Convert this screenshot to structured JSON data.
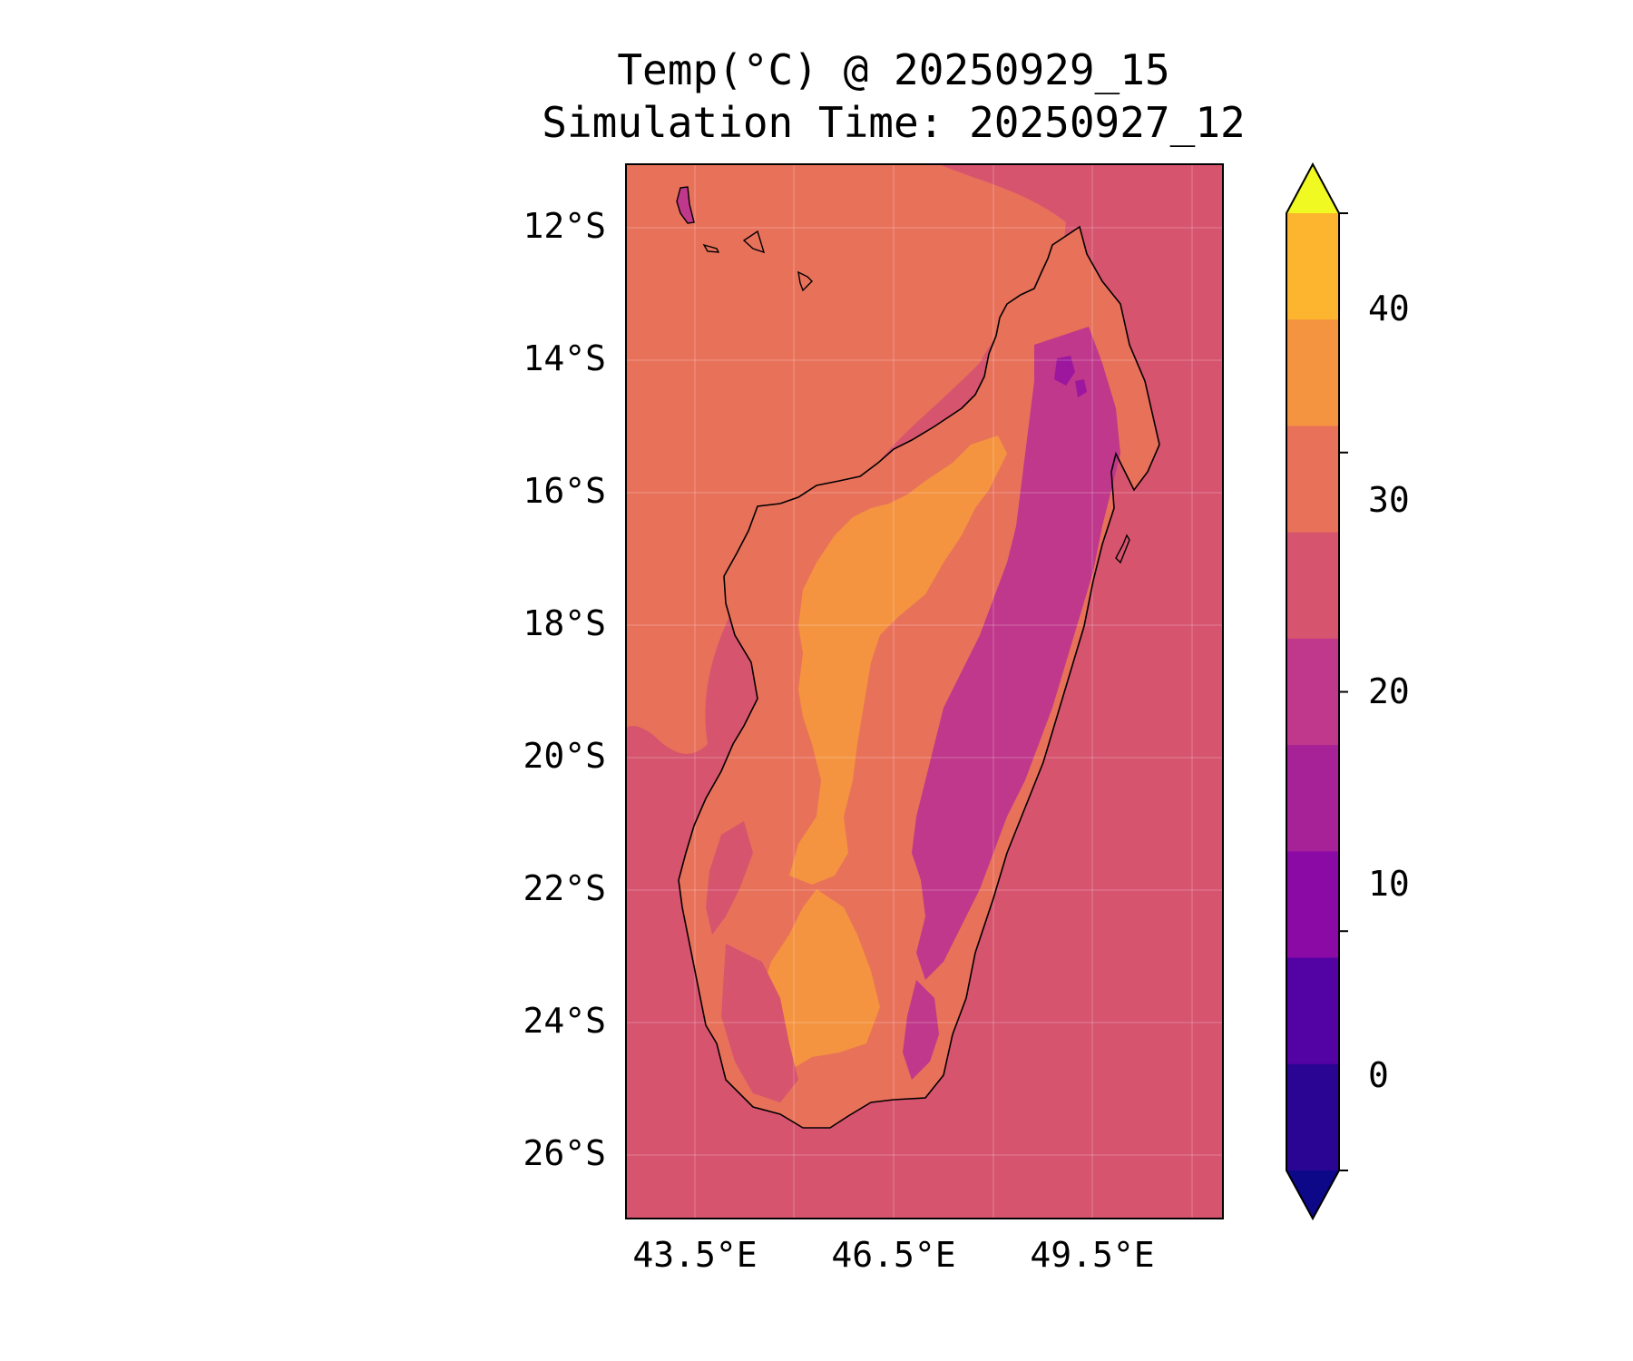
{
  "title": {
    "line1": "Temp(°C) @ 20250929_15",
    "line2": "Simulation Time: 20250927_12"
  },
  "map": {
    "region": "Madagascar",
    "lat_range": [
      -27,
      -11.1
    ],
    "lon_range": [
      42.5,
      51.5
    ],
    "y_ticks": [
      "12°S",
      "14°S",
      "16°S",
      "18°S",
      "20°S",
      "22°S",
      "24°S",
      "26°S"
    ],
    "x_ticks": [
      "43.5°E",
      "46.5°E",
      "49.5°E"
    ],
    "ocean_color": "#d6546e",
    "land_fill_colors": {
      "coastal": "#e8715a",
      "highland_warm": "#f49440",
      "cool_east": "#c0388b",
      "coldest": "#9c179e"
    }
  },
  "colorbar": {
    "levels": [
      -5,
      0,
      5,
      10,
      15,
      20,
      25,
      30,
      35,
      40,
      45
    ],
    "tick_labels": [
      "0",
      "10",
      "20",
      "30",
      "40"
    ],
    "colors": [
      "#0d0887",
      "#2a0593",
      "#5302a3",
      "#8b0aa5",
      "#a72197",
      "#c0388b",
      "#d6546e",
      "#e8715a",
      "#f49440",
      "#fdb42f",
      "#f0f921"
    ],
    "extend": "both"
  }
}
